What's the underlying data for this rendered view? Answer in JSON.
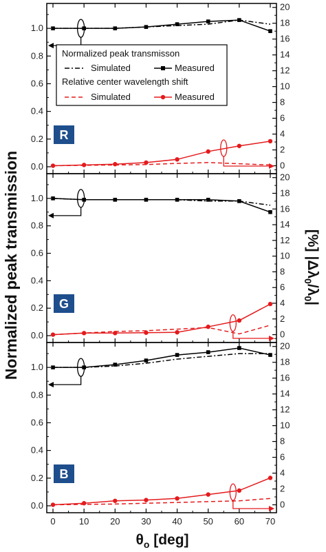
{
  "chart_data": [
    {
      "type": "line",
      "panel_label": "R",
      "legend": {
        "group1": "Normalized peak transmisson",
        "group2": "Relative center wavelength shift",
        "simulated": "Simulated",
        "measured": "Measured"
      },
      "x": [
        0,
        10,
        20,
        30,
        40,
        50,
        60,
        70
      ],
      "xlim": [
        -2,
        72
      ],
      "ylim_left": [
        -0.05,
        1.18
      ],
      "ylim_right": [
        -1,
        20.5
      ],
      "series": [
        {
          "name": "Simulated",
          "group": "Normalized peak transmisson",
          "axis": "left",
          "color": "#000000",
          "style": "dashdot",
          "values": [
            1.0,
            1.0,
            1.0,
            1.01,
            1.02,
            1.03,
            1.06,
            1.03
          ]
        },
        {
          "name": "Measured",
          "group": "Normalized peak transmisson",
          "axis": "left",
          "color": "#000000",
          "style": "solid-square",
          "values": [
            1.0,
            1.0,
            1.0,
            1.01,
            1.03,
            1.05,
            1.06,
            0.98
          ]
        },
        {
          "name": "Simulated",
          "group": "Relative center wavelength shift",
          "axis": "right",
          "color": "#e41a1c",
          "style": "dashed",
          "values": [
            0.0,
            0.05,
            0.1,
            0.15,
            0.3,
            0.4,
            0.25,
            0.1
          ]
        },
        {
          "name": "Measured",
          "group": "Relative center wavelength shift",
          "axis": "right",
          "color": "#e41a1c",
          "style": "solid-circle",
          "values": [
            0.0,
            0.1,
            0.2,
            0.4,
            0.8,
            1.8,
            2.5,
            3.1
          ]
        }
      ]
    },
    {
      "type": "line",
      "panel_label": "G",
      "x": [
        0,
        10,
        20,
        30,
        40,
        50,
        60,
        70
      ],
      "xlim": [
        -2,
        72
      ],
      "ylim_left": [
        -0.05,
        1.18
      ],
      "ylim_right": [
        -1,
        20.5
      ],
      "series": [
        {
          "name": "Simulated",
          "axis": "left",
          "color": "#000000",
          "style": "dashdot",
          "values": [
            1.0,
            0.99,
            0.99,
            0.99,
            0.99,
            0.98,
            0.98,
            0.95
          ]
        },
        {
          "name": "Measured",
          "axis": "left",
          "color": "#000000",
          "style": "solid-square",
          "values": [
            1.0,
            0.99,
            0.99,
            0.99,
            0.99,
            0.99,
            0.98,
            0.9
          ]
        },
        {
          "name": "Simulated",
          "axis": "right",
          "color": "#e41a1c",
          "style": "dashed",
          "values": [
            0.0,
            0.2,
            0.4,
            0.5,
            0.7,
            0.9,
            0.1,
            1.2
          ]
        },
        {
          "name": "Measured",
          "axis": "right",
          "color": "#e41a1c",
          "style": "solid-circle",
          "values": [
            0.0,
            0.2,
            0.2,
            0.25,
            0.3,
            1.0,
            1.8,
            3.9
          ]
        }
      ]
    },
    {
      "type": "line",
      "panel_label": "B",
      "x": [
        0,
        10,
        20,
        30,
        40,
        50,
        60,
        70
      ],
      "xlim": [
        -2,
        72
      ],
      "ylim_left": [
        -0.05,
        1.18
      ],
      "ylim_right": [
        -1,
        20.5
      ],
      "series": [
        {
          "name": "Simulated",
          "axis": "left",
          "color": "#000000",
          "style": "dashdot",
          "values": [
            1.0,
            1.0,
            1.01,
            1.03,
            1.06,
            1.08,
            1.1,
            1.1
          ]
        },
        {
          "name": "Measured",
          "axis": "left",
          "color": "#000000",
          "style": "solid-square",
          "values": [
            1.0,
            1.0,
            1.02,
            1.05,
            1.09,
            1.11,
            1.14,
            1.09
          ]
        },
        {
          "name": "Simulated",
          "axis": "right",
          "color": "#e41a1c",
          "style": "dashed",
          "values": [
            0.0,
            0.05,
            0.1,
            0.2,
            0.3,
            0.4,
            0.5,
            0.8
          ]
        },
        {
          "name": "Measured",
          "axis": "right",
          "color": "#e41a1c",
          "style": "solid-circle",
          "values": [
            0.0,
            0.2,
            0.5,
            0.6,
            0.8,
            1.3,
            1.8,
            3.4
          ]
        }
      ]
    }
  ],
  "axes": {
    "left_ticks": [
      0.0,
      0.2,
      0.4,
      0.6,
      0.8,
      1.0
    ],
    "left_tick_labels": [
      "0.0",
      "0.2",
      "0.4",
      "0.6",
      "0.8",
      "1.0"
    ],
    "right_ticks": [
      0,
      2,
      4,
      6,
      8,
      10,
      12,
      14,
      16,
      18,
      20
    ],
    "x_ticks": [
      0,
      10,
      20,
      30,
      40,
      50,
      60,
      70
    ],
    "ylabel_left": "Normalized peak transmission",
    "ylabel_right_symbol": "Δλ",
    "ylabel_right_sub": "0",
    "ylabel_right_sep": "/λ",
    "ylabel_right_bracket_open": "|",
    "ylabel_right_bracket_close": "|",
    "ylabel_right_unit": "[%]",
    "xlabel_symbol": "θ",
    "xlabel_sub": "o",
    "xlabel_unit": " [deg]"
  },
  "colors": {
    "black": "#000000",
    "red": "#e41a1c",
    "badge": "#1f4e8c"
  }
}
